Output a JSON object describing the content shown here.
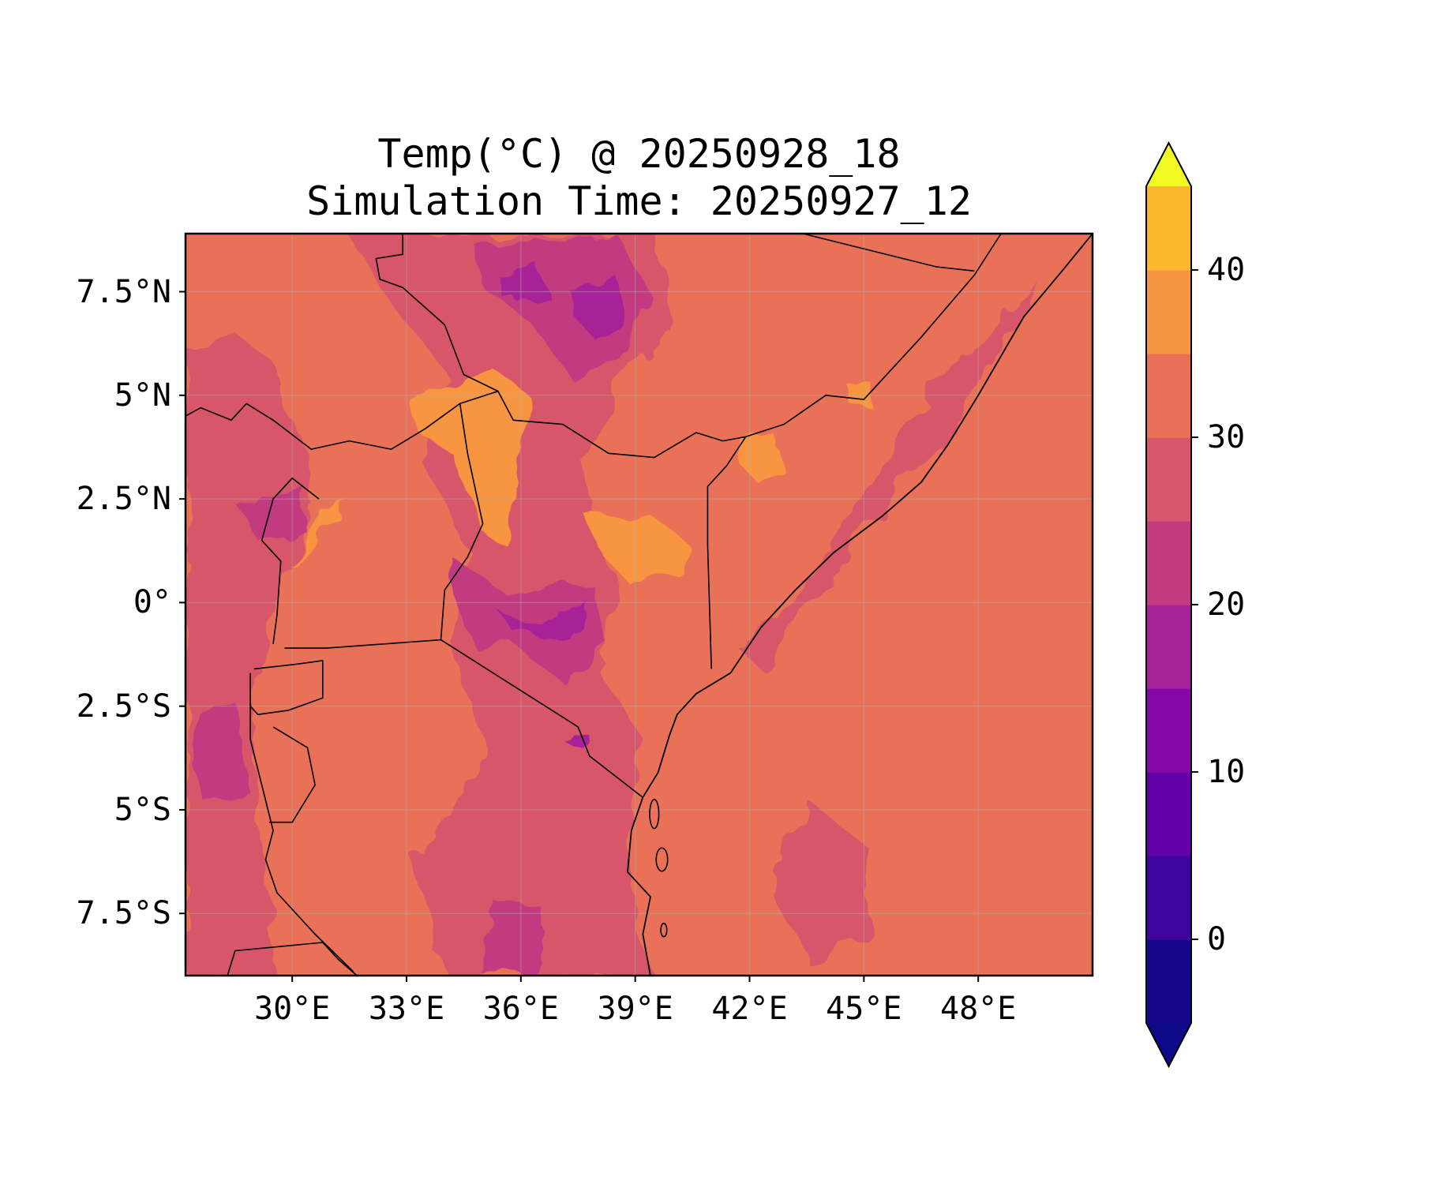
{
  "figure": {
    "title_line1": "Temp(°C) @ 20250928_18",
    "title_line2": "Simulation Time: 20250927_12"
  },
  "map": {
    "type": "filled-contour",
    "variable": "Temp(°C)",
    "valid_time": "20250928_18",
    "simulation_time": "20250927_12",
    "lon_range": [
      27.2,
      51.0
    ],
    "lat_range": [
      -9.0,
      8.9
    ],
    "x_ticks": [
      {
        "value": 30,
        "label": "30°E"
      },
      {
        "value": 33,
        "label": "33°E"
      },
      {
        "value": 36,
        "label": "36°E"
      },
      {
        "value": 39,
        "label": "39°E"
      },
      {
        "value": 42,
        "label": "42°E"
      },
      {
        "value": 45,
        "label": "45°E"
      },
      {
        "value": 48,
        "label": "48°E"
      }
    ],
    "y_ticks": [
      {
        "value": 7.5,
        "label": "7.5°N"
      },
      {
        "value": 5,
        "label": "5°N"
      },
      {
        "value": 2.5,
        "label": "2.5°N"
      },
      {
        "value": 0,
        "label": "0°"
      },
      {
        "value": -2.5,
        "label": "2.5°S"
      },
      {
        "value": -5,
        "label": "5°S"
      },
      {
        "value": -7.5,
        "label": "7.5°S"
      }
    ],
    "grid": true,
    "features": [
      "coastlines",
      "country borders"
    ]
  },
  "colorbar": {
    "levels": [
      -5,
      0,
      5,
      10,
      15,
      20,
      25,
      30,
      35,
      40,
      45
    ],
    "colors": [
      "#150789",
      "#3e049c",
      "#6300a7",
      "#8606a6",
      "#a72197",
      "#c23b80",
      "#d8576b",
      "#e97158",
      "#f89540",
      "#fbb72f",
      "#f3e425"
    ],
    "under_color": "#0d0887",
    "over_color": "#f0f921",
    "extend": "both",
    "ticks": [
      {
        "value": 0,
        "label": "0"
      },
      {
        "value": 10,
        "label": "10"
      },
      {
        "value": 20,
        "label": "20"
      },
      {
        "value": 30,
        "label": "30"
      },
      {
        "value": 40,
        "label": "40"
      }
    ]
  },
  "colors": {
    "background_dominant": "#e97158",
    "cool_band": "#d8576b",
    "warm_band": "#f89540",
    "border": "#000000"
  }
}
